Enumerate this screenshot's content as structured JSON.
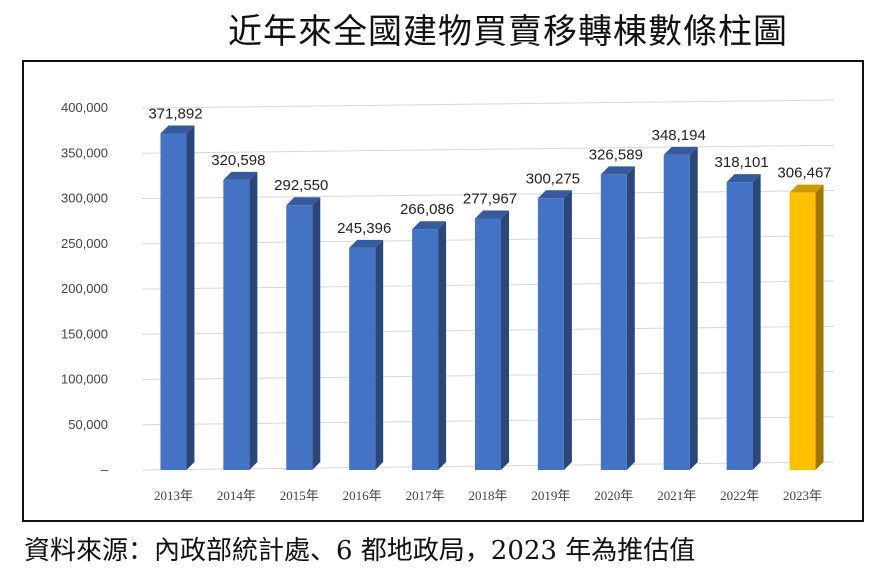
{
  "title": "近年來全國建物買賣移轉棟數條柱圖",
  "source": "資料來源：內政部統計處、6 都地政局，2023 年為推估值",
  "colors": {
    "bar": "#4472C4",
    "highlight": "#FFC000",
    "grid": "#D9D9D9"
  },
  "chart_data": {
    "type": "bar",
    "title": "近年來全國建物買賣移轉棟數條柱圖",
    "categories": [
      "2013年",
      "2014年",
      "2015年",
      "2016年",
      "2017年",
      "2018年",
      "2019年",
      "2020年",
      "2021年",
      "2022年",
      "2023年"
    ],
    "values": [
      371892,
      320598,
      292550,
      245396,
      266086,
      277967,
      300275,
      326589,
      348194,
      318101,
      306467
    ],
    "data_labels": [
      "371,892",
      "320,598",
      "292,550",
      "245,396",
      "266,086",
      "277,967",
      "300,275",
      "326,589",
      "348,194",
      "318,101",
      "306,467"
    ],
    "highlight_index": 10,
    "ylim": [
      0,
      400000
    ],
    "yticks": [
      0,
      50000,
      100000,
      150000,
      200000,
      250000,
      300000,
      350000,
      400000
    ],
    "ytick_labels": [
      "–",
      "50,000",
      "100,000",
      "150,000",
      "200,000",
      "250,000",
      "300,000",
      "350,000",
      "400,000"
    ],
    "grid": true,
    "xlabel": "",
    "ylabel": ""
  }
}
